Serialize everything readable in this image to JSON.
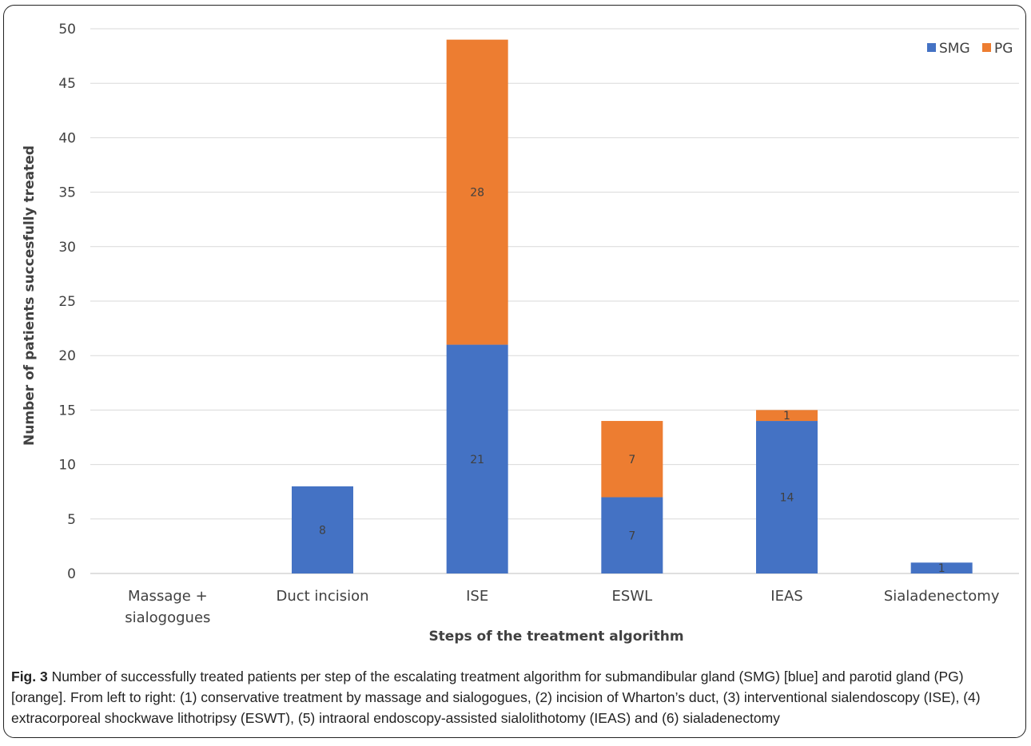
{
  "chart_data": {
    "type": "bar",
    "stacked": true,
    "categories": [
      "Massage +\nsialogogues",
      "Duct incision",
      "ISE",
      "ESWL",
      "IEAS",
      "Sialadenectomy"
    ],
    "series": [
      {
        "name": "SMG",
        "color": "#4472C4",
        "values": [
          0,
          8,
          21,
          7,
          14,
          1
        ],
        "labels": [
          "",
          "8",
          "21",
          "7",
          "14",
          "1"
        ]
      },
      {
        "name": "PG",
        "color": "#ED7D31",
        "values": [
          0,
          0,
          28,
          7,
          1,
          0
        ],
        "labels": [
          "",
          "",
          "28",
          "7",
          "1",
          ""
        ]
      }
    ],
    "xlabel": "Steps of the treatment algorithm",
    "ylabel": "Number of patients succesfully treated",
    "ylim": [
      0,
      50
    ],
    "yticks": [
      0,
      5,
      10,
      15,
      20,
      25,
      30,
      35,
      40,
      45,
      50
    ],
    "grid": true,
    "legend": "top-right"
  },
  "caption": {
    "fig_label": "Fig. 3",
    "text": " Number of successfully treated patients per step of the escalating treatment algorithm for submandibular gland (SMG) [blue] and parotid gland (PG) [orange]. From left to right: (1) conservative treatment by massage and sialogogues, (2) incision of Wharton’s duct, (3) interventional sialendoscopy (ISE), (4) extracorporeal shockwave lithotripsy (ESWT), (5) intraoral endoscopy-assisted sialolithotomy (IEAS) and (6) sialadenectomy"
  }
}
